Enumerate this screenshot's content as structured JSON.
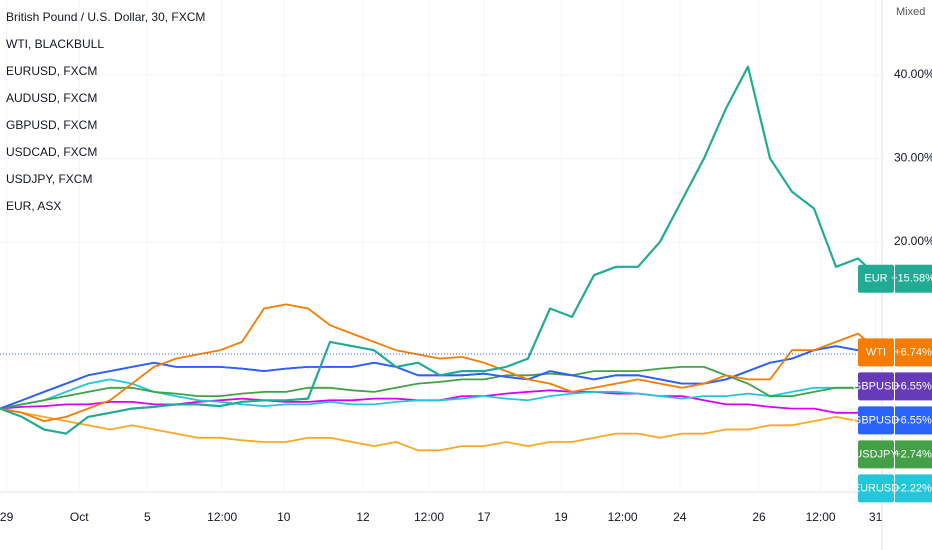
{
  "chart_data": {
    "type": "line",
    "legend": [
      "British Pound / U.S. Dollar, 30, FXCM",
      "WTI, BLACKBULL",
      "EURUSD, FXCM",
      "AUDUSD, FXCM",
      "GBPUSD, FXCM",
      "USDCAD, FXCM",
      "USDJPY, FXCM",
      "EUR, ASX"
    ],
    "scale_label": "Mixed",
    "x": [
      0,
      1,
      2,
      3,
      4,
      5,
      6,
      7,
      8,
      9,
      10,
      11,
      12,
      13,
      14,
      15,
      16,
      17,
      18,
      19,
      20,
      21,
      22,
      23,
      24,
      25,
      26,
      27,
      28,
      29,
      30,
      31,
      32,
      33,
      34,
      35,
      36,
      37,
      38,
      39,
      40
    ],
    "xlim": [
      0,
      40
    ],
    "xticks": [
      {
        "value": 0.3,
        "label": "29"
      },
      {
        "value": 3.6,
        "label": "Oct"
      },
      {
        "value": 6.7,
        "label": "5"
      },
      {
        "value": 10.1,
        "label": "12:00"
      },
      {
        "value": 12.9,
        "label": "10"
      },
      {
        "value": 16.5,
        "label": "12"
      },
      {
        "value": 19.5,
        "label": "12:00"
      },
      {
        "value": 22,
        "label": "17"
      },
      {
        "value": 25.5,
        "label": "19"
      },
      {
        "value": 28.3,
        "label": "12:00"
      },
      {
        "value": 30.9,
        "label": "24"
      },
      {
        "value": 34.5,
        "label": "26"
      },
      {
        "value": 37.3,
        "label": "12:00"
      },
      {
        "value": 39.8,
        "label": "31"
      }
    ],
    "ylim": [
      -10,
      49
    ],
    "yticks": [
      {
        "value": 20,
        "label": "20.00%"
      },
      {
        "value": 30,
        "label": "30.00%"
      },
      {
        "value": 40,
        "label": "40.00%"
      }
    ],
    "grid": true,
    "series": [
      {
        "color": "#f9a825",
        "values": [
          0,
          -0.5,
          -1,
          -1.5,
          -2,
          -2.5,
          -2,
          -2.5,
          -3,
          -3.5,
          -3.5,
          -3.8,
          -4,
          -4,
          -3.5,
          -3.5,
          -4,
          -4.5,
          -4,
          -5,
          -5,
          -4.5,
          -4.5,
          -4,
          -4.5,
          -4,
          -4,
          -3.5,
          -3,
          -3,
          -3.5,
          -3,
          -3,
          -2.5,
          -2.5,
          -2,
          -2,
          -1.5,
          -1,
          -1.5,
          -2
        ]
      },
      {
        "color": "#d500f9",
        "values": [
          0,
          0.2,
          0.3,
          0.5,
          0.5,
          0.8,
          0.8,
          0.5,
          0.5,
          0.8,
          1,
          1.2,
          1,
          0.8,
          0.8,
          1,
          1,
          1.2,
          1.2,
          1,
          1,
          1.5,
          1.5,
          1.8,
          2,
          2.2,
          2,
          2,
          1.8,
          1.8,
          1.5,
          1.5,
          1,
          0.5,
          0.5,
          0.2,
          0,
          0,
          -0.5,
          -0.5,
          -0.8
        ]
      },
      {
        "name": "EURUSD",
        "color": "#26c6da",
        "values": [
          0,
          0.5,
          1,
          2,
          3,
          3.5,
          3,
          2,
          1.5,
          1,
          0.8,
          0.5,
          0.3,
          0.5,
          0.5,
          0.8,
          0.5,
          0.5,
          0.8,
          1,
          1,
          1.2,
          1.5,
          1.2,
          1,
          1.5,
          1.8,
          2,
          2,
          1.8,
          1.5,
          1.2,
          1.5,
          1.5,
          1.8,
          1.5,
          2,
          2.5,
          2.5,
          2.5,
          2.22
        ],
        "value_labels": [
          null,
          null,
          null,
          null,
          null,
          null,
          null,
          null,
          null,
          null,
          null,
          null,
          null,
          null,
          null,
          null,
          null,
          null,
          null,
          null,
          null,
          null,
          null,
          null,
          null,
          null,
          null,
          null,
          null,
          null,
          null,
          null,
          null,
          null,
          null,
          null,
          null,
          null,
          null,
          null,
          "+2.22%"
        ]
      },
      {
        "name": "USDJPY",
        "color": "#43a047",
        "values": [
          0,
          0.5,
          1,
          1.5,
          2,
          2.5,
          2.5,
          2,
          1.8,
          1.5,
          1.5,
          1.8,
          2,
          2,
          2.5,
          2.5,
          2.2,
          2,
          2.5,
          3,
          3.2,
          3.5,
          3.5,
          4,
          4,
          4.2,
          4,
          4.5,
          4.5,
          4.5,
          4.8,
          5,
          5,
          4,
          3,
          1.5,
          1.5,
          2,
          2.5,
          2.5,
          2.74
        ],
        "value_labels": [
          null,
          null,
          null,
          null,
          null,
          null,
          null,
          null,
          null,
          null,
          null,
          null,
          null,
          null,
          null,
          null,
          null,
          null,
          null,
          null,
          null,
          null,
          null,
          null,
          null,
          null,
          null,
          null,
          null,
          null,
          null,
          null,
          null,
          null,
          null,
          null,
          null,
          null,
          null,
          null,
          "+2.74%"
        ]
      },
      {
        "name": "GBPUSD",
        "color": "#673ab7",
        "values": [
          0,
          1,
          2,
          3,
          4,
          4.5,
          5,
          5.5,
          5,
          5,
          5,
          4.8,
          4.5,
          4.8,
          5,
          5,
          5,
          5.5,
          5,
          4,
          4,
          4,
          4.2,
          3.8,
          3.5,
          4.5,
          4,
          3.5,
          4,
          4,
          3.5,
          3,
          3,
          3.5,
          4.5,
          5.5,
          6,
          7,
          7.5,
          7,
          6.55
        ],
        "value_labels": [
          null,
          null,
          null,
          null,
          null,
          null,
          null,
          null,
          null,
          null,
          null,
          null,
          null,
          null,
          null,
          null,
          null,
          null,
          null,
          null,
          null,
          null,
          null,
          null,
          null,
          null,
          null,
          null,
          null,
          null,
          null,
          null,
          null,
          null,
          null,
          null,
          null,
          null,
          null,
          null,
          "+6.55%"
        ]
      },
      {
        "name": "GBPUSD",
        "color": "#2962ff",
        "values": [
          0,
          1,
          2,
          3,
          4,
          4.5,
          5,
          5.5,
          5,
          5,
          5,
          4.8,
          4.5,
          4.8,
          5,
          5,
          5,
          5.5,
          5,
          4,
          4,
          4,
          4.2,
          3.8,
          3.5,
          4.5,
          4,
          3.5,
          4,
          4,
          3.5,
          3,
          3,
          3.5,
          4.5,
          5.5,
          6,
          7,
          7.5,
          7,
          6.55
        ],
        "value_labels": [
          null,
          null,
          null,
          null,
          null,
          null,
          null,
          null,
          null,
          null,
          null,
          null,
          null,
          null,
          null,
          null,
          null,
          null,
          null,
          null,
          null,
          null,
          null,
          null,
          null,
          null,
          null,
          null,
          null,
          null,
          null,
          null,
          null,
          null,
          null,
          null,
          null,
          null,
          null,
          null,
          "+6.55%"
        ]
      },
      {
        "name": "WTI",
        "color": "#f57c00",
        "values": [
          0,
          -0.5,
          -1.5,
          -1,
          0,
          1,
          3,
          5,
          6,
          6.5,
          7,
          8,
          12,
          12.5,
          12,
          10,
          9,
          8,
          7,
          6.5,
          6,
          6.2,
          5.5,
          4.5,
          3.5,
          3,
          2,
          2.5,
          3,
          3.5,
          3,
          2.5,
          3,
          4,
          3.5,
          3.5,
          7,
          7,
          8,
          9,
          6.74
        ],
        "value_labels": [
          null,
          null,
          null,
          null,
          null,
          null,
          null,
          null,
          null,
          null,
          null,
          null,
          null,
          null,
          null,
          null,
          null,
          null,
          null,
          null,
          null,
          null,
          null,
          null,
          null,
          null,
          null,
          null,
          null,
          null,
          null,
          null,
          null,
          null,
          null,
          null,
          null,
          null,
          null,
          null,
          "+6.74%"
        ]
      },
      {
        "name": "EUR",
        "color": "#22ab94",
        "values": [
          0,
          -1,
          -2.5,
          -3,
          -1,
          -0.5,
          0,
          0.2,
          0.5,
          0.5,
          0.3,
          0.8,
          1,
          1,
          1.2,
          8,
          7.5,
          7,
          5,
          5.5,
          4,
          4.5,
          4.5,
          5,
          6,
          12,
          11,
          16,
          17,
          17,
          20,
          25,
          30,
          36,
          41,
          30,
          26,
          24,
          17,
          18,
          15.58
        ],
        "value_labels": [
          null,
          null,
          null,
          null,
          null,
          null,
          null,
          null,
          null,
          null,
          null,
          null,
          null,
          null,
          null,
          null,
          null,
          null,
          null,
          null,
          null,
          null,
          null,
          null,
          null,
          null,
          null,
          null,
          null,
          null,
          null,
          null,
          null,
          null,
          null,
          null,
          null,
          null,
          null,
          null,
          "+15.58%"
        ]
      }
    ]
  }
}
